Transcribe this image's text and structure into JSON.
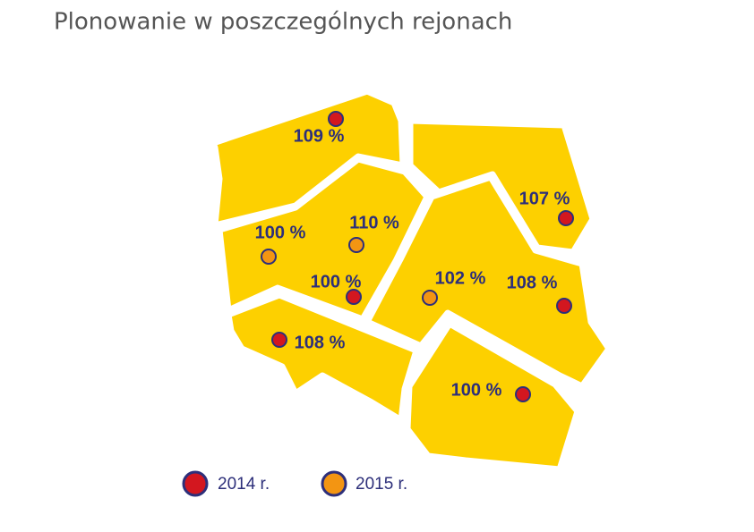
{
  "title": "Plonowanie w poszczególnych rejonach",
  "legend": [
    {
      "label": "2014 r.",
      "color": "#d3171f",
      "markers": [
        {
          "label": "109 %"
        },
        {
          "label": "107 %"
        },
        {
          "label": "100 %"
        },
        {
          "label": "108 %"
        },
        {
          "label": "108 %"
        },
        {
          "label": "100 %"
        }
      ]
    },
    {
      "label": "2015 r.",
      "color": "#f39512",
      "markers": [
        {
          "label": "100 %"
        },
        {
          "label": "110 %"
        },
        {
          "label": "102 %"
        }
      ]
    }
  ]
}
